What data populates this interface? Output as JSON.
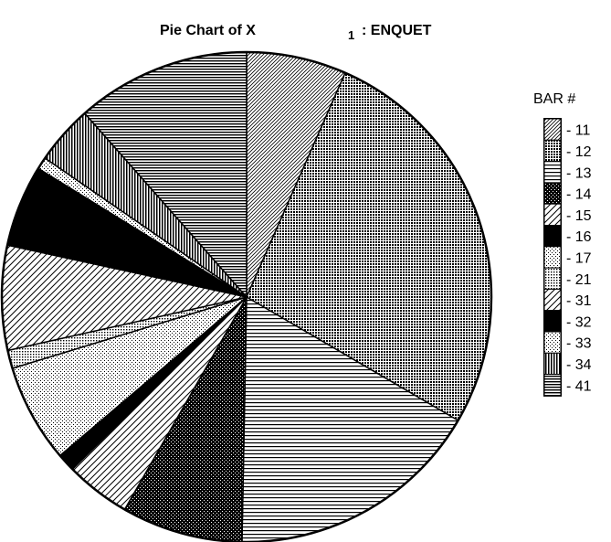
{
  "chart_data": {
    "type": "pie",
    "title": "Pie Chart of X",
    "title_subscript": "1",
    "title_suffix": ": ENQUET",
    "legend": {
      "title": "BAR #",
      "position": "right"
    },
    "start_angle_deg": 0,
    "direction": "clockwise",
    "slices": [
      {
        "label": "11",
        "value": 6.6,
        "pattern": "diag-fine"
      },
      {
        "label": "12",
        "value": 26.8,
        "pattern": "dots-dense"
      },
      {
        "label": "13",
        "value": 16.9,
        "pattern": "hlines"
      },
      {
        "label": "14",
        "value": 8.0,
        "pattern": "crosshatch"
      },
      {
        "label": "15",
        "value": 4.3,
        "pattern": "diag-wide"
      },
      {
        "label": "16",
        "value": 1.2,
        "pattern": "solid"
      },
      {
        "label": "17",
        "value": 6.5,
        "pattern": "dots-sparse"
      },
      {
        "label": "21",
        "value": 1.2,
        "pattern": "dots-medium"
      },
      {
        "label": "31",
        "value": 6.9,
        "pattern": "diag-wide"
      },
      {
        "label": "32",
        "value": 5.4,
        "pattern": "solid"
      },
      {
        "label": "33",
        "value": 0.8,
        "pattern": "dots-sparse"
      },
      {
        "label": "34",
        "value": 3.9,
        "pattern": "vlines"
      },
      {
        "label": "41",
        "value": 11.5,
        "pattern": "hlines-dense"
      }
    ]
  }
}
